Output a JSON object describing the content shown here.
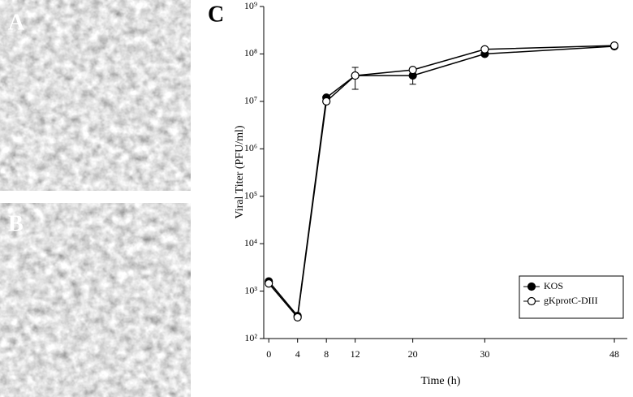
{
  "panels": [
    {
      "label": "A"
    },
    {
      "label": "B"
    }
  ],
  "chart_data": {
    "type": "line",
    "panel_label": "C",
    "x_label": "Time (h)",
    "y_label": "Viral Titer (PFU/ml)",
    "x": [
      0,
      4,
      8,
      12,
      20,
      30,
      48
    ],
    "xlim": [
      -0.7,
      49.8
    ],
    "xticks": [
      0,
      4,
      8,
      12,
      20,
      30,
      48
    ],
    "y_scale": "log",
    "ylim": [
      100,
      1000000000
    ],
    "yticks": [
      {
        "value": 100,
        "label": "10²"
      },
      {
        "value": 1000,
        "label": "10³"
      },
      {
        "value": 10000,
        "label": "10⁴"
      },
      {
        "value": 100000,
        "label": "10⁵"
      },
      {
        "value": 1000000,
        "label": "10⁶"
      },
      {
        "value": 10000000,
        "label": "10⁷"
      },
      {
        "value": 100000000,
        "label": "10⁸"
      },
      {
        "value": 1000000000,
        "label": "10⁹"
      }
    ],
    "legend": "lower right",
    "grid": false,
    "series": [
      {
        "name": "KOS",
        "color": "#000000",
        "marker_fill": "#000000",
        "values": [
          1600,
          300,
          12000000,
          35000000,
          35000000,
          100000000,
          145000000
        ],
        "errors": [
          null,
          null,
          null,
          17000000,
          12000000,
          null,
          null
        ]
      },
      {
        "name": "gKprotC-DIII",
        "color": "#000000",
        "marker_fill": "#ffffff",
        "values": [
          1450,
          280,
          10000000,
          35000000,
          46000000,
          125000000,
          150000000
        ]
      }
    ]
  }
}
